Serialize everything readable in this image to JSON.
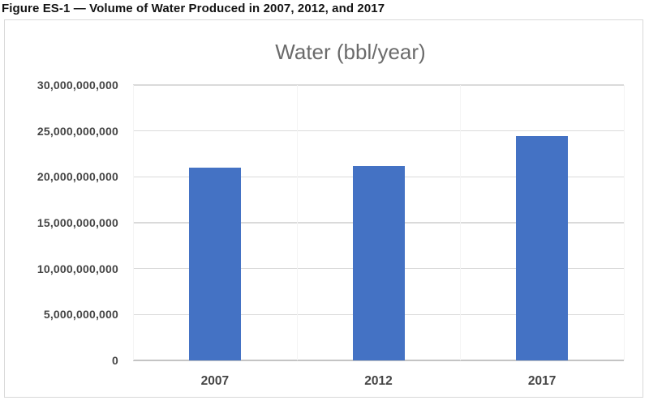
{
  "page": {
    "caption": "Figure ES-1 — Volume of Water Produced in 2007, 2012, and 2017"
  },
  "chart_data": {
    "type": "bar",
    "title": "Water (bbl/year)",
    "categories": [
      "2007",
      "2012",
      "2017"
    ],
    "values": [
      21000000000,
      21200000000,
      24400000000
    ],
    "xlabel": "",
    "ylabel": "",
    "ylim": [
      0,
      30000000000
    ],
    "ytick_step": 5000000000,
    "ytick_labels": [
      "0",
      "5,000,000,000",
      "10,000,000,000",
      "15,000,000,000",
      "20,000,000,000",
      "25,000,000,000",
      "30,000,000,000"
    ],
    "grid": "horizontal-major",
    "legend": "none",
    "colors": {
      "bar": "#4472C4",
      "gridline": "#dadada",
      "axis_line": "#c4c4c4",
      "title_text": "#6b6b6b",
      "tick_text": "#454545",
      "chart_border": "#d9d9d9",
      "background": "#ffffff"
    }
  }
}
